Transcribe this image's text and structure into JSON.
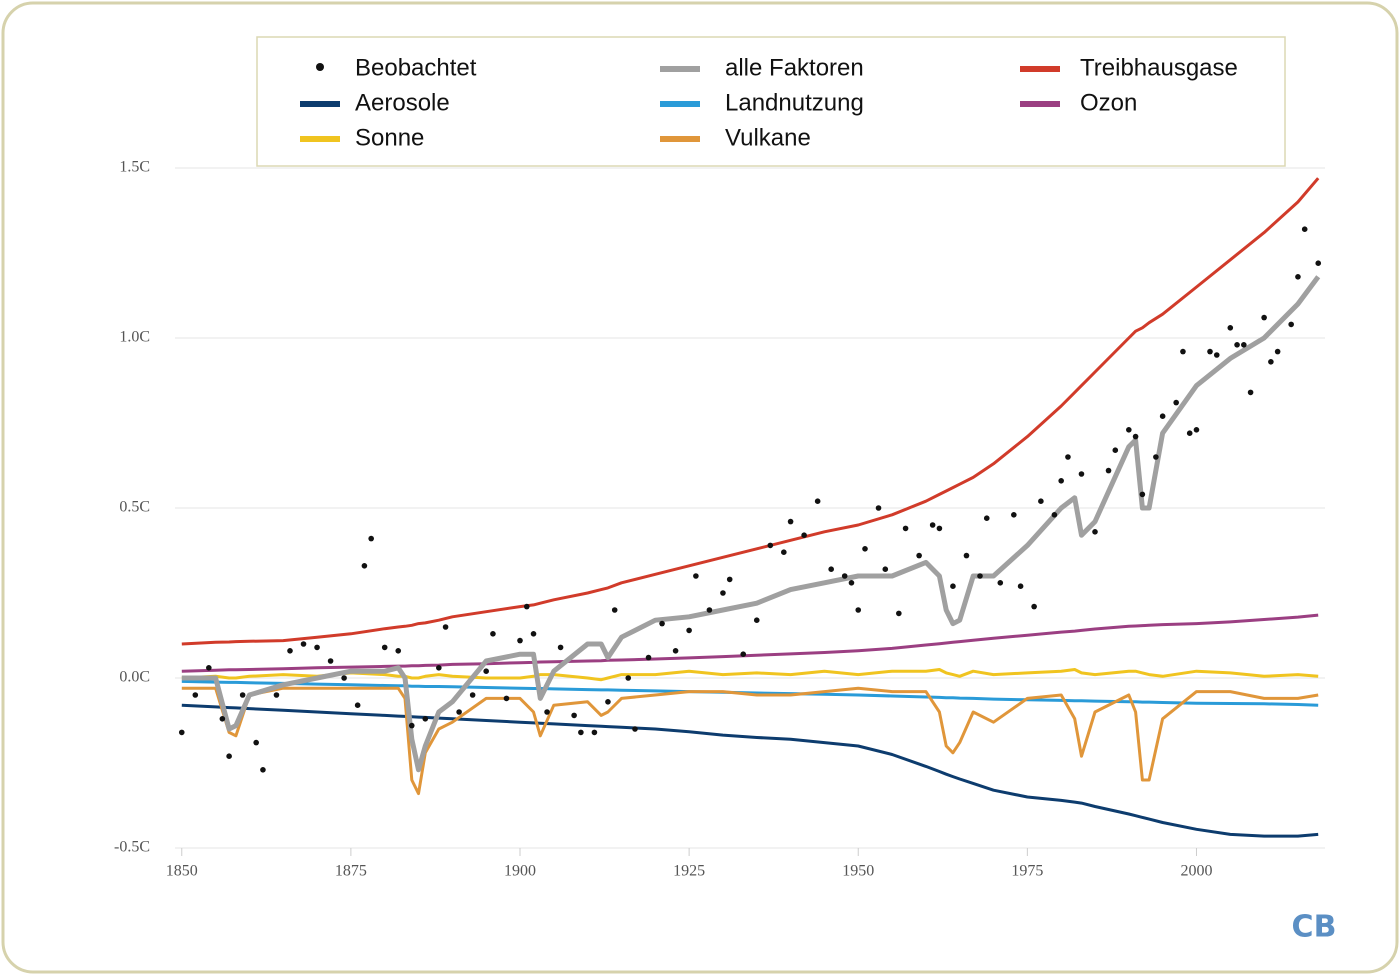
{
  "chart_data": {
    "type": "line",
    "logo": "CB",
    "xlim": [
      1849,
      2019
    ],
    "ylim": [
      -0.5,
      1.5
    ],
    "xticks": [
      1850,
      1875,
      1900,
      1925,
      1950,
      1975,
      2000
    ],
    "yticks": [
      {
        "value": -0.5,
        "label": "-0.5C"
      },
      {
        "value": 0,
        "label": "0.0C"
      },
      {
        "value": 0.5,
        "label": "0.5C"
      },
      {
        "value": 1,
        "label": "1.0C"
      },
      {
        "value": 1.5,
        "label": "1.5C"
      }
    ],
    "grid": true,
    "legend": "top",
    "x": [
      1850,
      1855,
      1857,
      1858,
      1860,
      1865,
      1870,
      1875,
      1880,
      1882,
      1883,
      1884,
      1885,
      1886,
      1888,
      1890,
      1895,
      1900,
      1902,
      1903,
      1905,
      1910,
      1912,
      1913,
      1915,
      1920,
      1925,
      1930,
      1935,
      1940,
      1945,
      1950,
      1955,
      1960,
      1962,
      1963,
      1964,
      1965,
      1967,
      1970,
      1975,
      1980,
      1982,
      1983,
      1985,
      1990,
      1991,
      1992,
      1993,
      1995,
      2000,
      2005,
      2010,
      2015,
      2018
    ],
    "series": [
      {
        "name": "Beobachtet",
        "type": "scatter",
        "color": "#111111",
        "x": [
          1850,
          1852,
          1854,
          1856,
          1857,
          1859,
          1861,
          1862,
          1864,
          1866,
          1868,
          1870,
          1872,
          1874,
          1876,
          1877,
          1878,
          1880,
          1882,
          1884,
          1886,
          1888,
          1889,
          1891,
          1893,
          1895,
          1896,
          1898,
          1900,
          1901,
          1902,
          1904,
          1906,
          1908,
          1909,
          1911,
          1913,
          1914,
          1916,
          1917,
          1919,
          1921,
          1923,
          1925,
          1926,
          1928,
          1930,
          1931,
          1933,
          1935,
          1937,
          1939,
          1940,
          1942,
          1944,
          1946,
          1948,
          1949,
          1950,
          1951,
          1953,
          1954,
          1956,
          1957,
          1959,
          1961,
          1962,
          1964,
          1966,
          1968,
          1969,
          1971,
          1973,
          1974,
          1976,
          1977,
          1979,
          1980,
          1981,
          1983,
          1985,
          1987,
          1988,
          1990,
          1991,
          1992,
          1994,
          1995,
          1997,
          1998,
          1999,
          2000,
          2002,
          2003,
          2005,
          2006,
          2007,
          2008,
          2010,
          2011,
          2012,
          2014,
          2015,
          2016,
          2018
        ],
        "values": [
          -0.16,
          -0.05,
          0.03,
          -0.12,
          -0.23,
          -0.05,
          -0.19,
          -0.27,
          -0.05,
          0.08,
          0.1,
          0.09,
          0.05,
          0.0,
          -0.08,
          0.33,
          0.41,
          0.09,
          0.08,
          -0.14,
          -0.12,
          0.03,
          0.15,
          -0.1,
          -0.05,
          0.02,
          0.13,
          -0.06,
          0.11,
          0.21,
          0.13,
          -0.1,
          0.09,
          -0.11,
          -0.16,
          -0.16,
          -0.07,
          0.2,
          0.0,
          -0.15,
          0.06,
          0.16,
          0.08,
          0.14,
          0.3,
          0.2,
          0.25,
          0.29,
          0.07,
          0.17,
          0.39,
          0.37,
          0.46,
          0.42,
          0.52,
          0.32,
          0.3,
          0.28,
          0.2,
          0.38,
          0.5,
          0.32,
          0.19,
          0.44,
          0.36,
          0.45,
          0.44,
          0.27,
          0.36,
          0.3,
          0.47,
          0.28,
          0.48,
          0.27,
          0.21,
          0.52,
          0.48,
          0.58,
          0.65,
          0.6,
          0.43,
          0.61,
          0.67,
          0.73,
          0.71,
          0.54,
          0.65,
          0.77,
          0.81,
          0.96,
          0.72,
          0.73,
          0.96,
          0.95,
          1.03,
          0.98,
          0.98,
          0.84,
          1.06,
          0.93,
          0.96,
          1.04,
          1.18,
          1.32,
          1.22
        ]
      },
      {
        "name": "alle Faktoren",
        "color": "#a0a0a0",
        "values": [
          0.0,
          0.0,
          -0.15,
          -0.14,
          -0.05,
          -0.02,
          0.0,
          0.02,
          0.02,
          0.03,
          0.0,
          -0.18,
          -0.27,
          -0.2,
          -0.1,
          -0.07,
          0.05,
          0.07,
          0.07,
          -0.06,
          0.02,
          0.1,
          0.1,
          0.06,
          0.12,
          0.17,
          0.18,
          0.2,
          0.22,
          0.26,
          0.28,
          0.3,
          0.3,
          0.34,
          0.3,
          0.2,
          0.16,
          0.17,
          0.3,
          0.3,
          0.39,
          0.5,
          0.53,
          0.42,
          0.46,
          0.68,
          0.7,
          0.5,
          0.5,
          0.72,
          0.86,
          0.94,
          1.0,
          1.1,
          1.18
        ]
      },
      {
        "name": "Treibhausgase",
        "color": "#d13b2a",
        "values": [
          0.1,
          0.105,
          0.106,
          0.107,
          0.108,
          0.11,
          0.12,
          0.13,
          0.145,
          0.15,
          0.152,
          0.155,
          0.16,
          0.162,
          0.17,
          0.18,
          0.195,
          0.21,
          0.215,
          0.22,
          0.23,
          0.25,
          0.26,
          0.265,
          0.28,
          0.305,
          0.33,
          0.355,
          0.38,
          0.405,
          0.43,
          0.45,
          0.48,
          0.52,
          0.54,
          0.55,
          0.56,
          0.57,
          0.59,
          0.63,
          0.71,
          0.8,
          0.84,
          0.86,
          0.9,
          1.0,
          1.02,
          1.03,
          1.045,
          1.07,
          1.15,
          1.23,
          1.31,
          1.4,
          1.47
        ]
      },
      {
        "name": "Aerosole",
        "color": "#0d3c6e",
        "values": [
          -0.08,
          -0.085,
          -0.087,
          -0.088,
          -0.09,
          -0.095,
          -0.1,
          -0.105,
          -0.11,
          -0.112,
          -0.113,
          -0.114,
          -0.115,
          -0.116,
          -0.118,
          -0.12,
          -0.125,
          -0.13,
          -0.132,
          -0.133,
          -0.135,
          -0.14,
          -0.142,
          -0.143,
          -0.145,
          -0.15,
          -0.158,
          -0.168,
          -0.175,
          -0.18,
          -0.19,
          -0.2,
          -0.225,
          -0.26,
          -0.275,
          -0.283,
          -0.29,
          -0.297,
          -0.31,
          -0.33,
          -0.35,
          -0.36,
          -0.365,
          -0.368,
          -0.378,
          -0.4,
          -0.405,
          -0.41,
          -0.415,
          -0.425,
          -0.445,
          -0.46,
          -0.465,
          -0.465,
          -0.46
        ]
      },
      {
        "name": "Landnutzung",
        "color": "#2a9bd8",
        "values": [
          -0.01,
          -0.012,
          -0.013,
          -0.013,
          -0.014,
          -0.016,
          -0.018,
          -0.02,
          -0.022,
          -0.023,
          -0.023,
          -0.024,
          -0.024,
          -0.025,
          -0.025,
          -0.026,
          -0.028,
          -0.03,
          -0.031,
          -0.031,
          -0.032,
          -0.034,
          -0.035,
          -0.035,
          -0.036,
          -0.038,
          -0.04,
          -0.042,
          -0.044,
          -0.046,
          -0.048,
          -0.05,
          -0.053,
          -0.056,
          -0.057,
          -0.058,
          -0.058,
          -0.059,
          -0.06,
          -0.062,
          -0.064,
          -0.066,
          -0.067,
          -0.067,
          -0.068,
          -0.07,
          -0.07,
          -0.071,
          -0.071,
          -0.072,
          -0.074,
          -0.075,
          -0.076,
          -0.078,
          -0.08
        ]
      },
      {
        "name": "Ozon",
        "color": "#9b3f82",
        "values": [
          0.02,
          0.023,
          0.024,
          0.024,
          0.025,
          0.027,
          0.03,
          0.032,
          0.034,
          0.035,
          0.035,
          0.036,
          0.036,
          0.037,
          0.038,
          0.04,
          0.042,
          0.045,
          0.046,
          0.047,
          0.048,
          0.05,
          0.051,
          0.052,
          0.053,
          0.056,
          0.059,
          0.063,
          0.067,
          0.071,
          0.075,
          0.08,
          0.087,
          0.097,
          0.101,
          0.103,
          0.105,
          0.107,
          0.111,
          0.117,
          0.126,
          0.135,
          0.138,
          0.14,
          0.144,
          0.152,
          0.153,
          0.154,
          0.155,
          0.157,
          0.16,
          0.165,
          0.172,
          0.179,
          0.185
        ]
      },
      {
        "name": "Sonne",
        "color": "#f0c420",
        "values": [
          0.0,
          0.005,
          0.0,
          0.0,
          0.005,
          0.01,
          0.005,
          0.015,
          0.01,
          0.005,
          0.005,
          0.0,
          0.0,
          0.005,
          0.01,
          0.005,
          0.0,
          0.0,
          0.005,
          0.01,
          0.01,
          0.0,
          -0.005,
          0.0,
          0.01,
          0.01,
          0.02,
          0.01,
          0.015,
          0.01,
          0.02,
          0.01,
          0.02,
          0.02,
          0.025,
          0.015,
          0.01,
          0.005,
          0.02,
          0.01,
          0.015,
          0.02,
          0.025,
          0.015,
          0.01,
          0.02,
          0.02,
          0.015,
          0.01,
          0.005,
          0.02,
          0.015,
          0.005,
          0.01,
          0.005
        ]
      },
      {
        "name": "Vulkane",
        "color": "#e0963a",
        "values": [
          -0.03,
          -0.03,
          -0.16,
          -0.17,
          -0.05,
          -0.03,
          -0.03,
          -0.03,
          -0.03,
          -0.03,
          -0.06,
          -0.3,
          -0.34,
          -0.22,
          -0.15,
          -0.13,
          -0.06,
          -0.06,
          -0.1,
          -0.17,
          -0.08,
          -0.07,
          -0.11,
          -0.1,
          -0.06,
          -0.05,
          -0.04,
          -0.04,
          -0.05,
          -0.05,
          -0.04,
          -0.03,
          -0.04,
          -0.04,
          -0.1,
          -0.2,
          -0.22,
          -0.19,
          -0.1,
          -0.13,
          -0.06,
          -0.05,
          -0.12,
          -0.23,
          -0.1,
          -0.05,
          -0.1,
          -0.3,
          -0.3,
          -0.12,
          -0.04,
          -0.04,
          -0.06,
          -0.06,
          -0.05
        ]
      }
    ]
  }
}
